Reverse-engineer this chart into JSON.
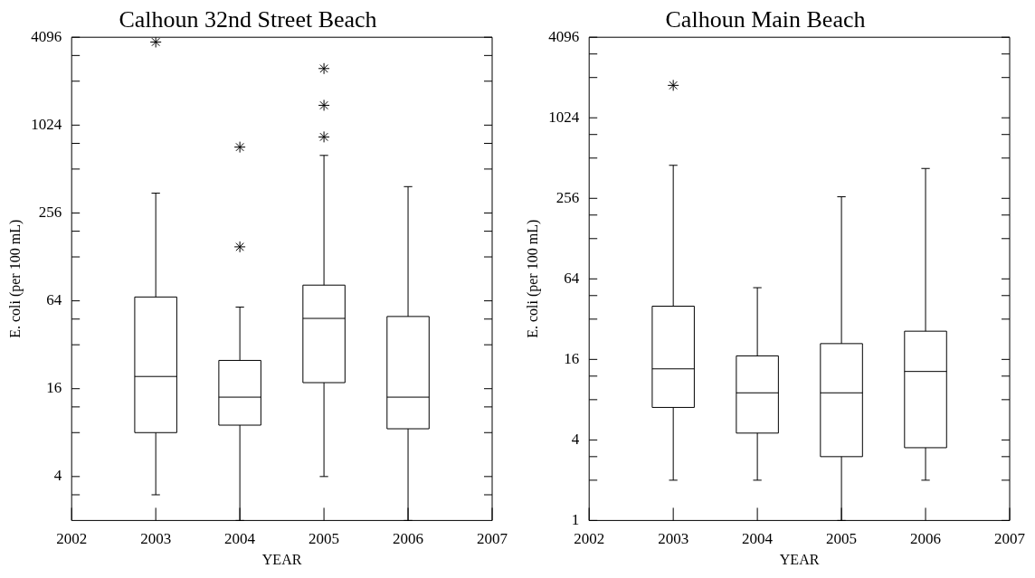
{
  "chart_data": [
    {
      "type": "box",
      "title": "Calhoun 32nd Street Beach",
      "xlabel": "YEAR",
      "ylabel": "E. coli (per 100 mL)",
      "x": [
        2003,
        2004,
        2005,
        2006
      ],
      "xlim": [
        2002,
        2007
      ],
      "xticks": [
        2002,
        2003,
        2004,
        2005,
        2006,
        2007
      ],
      "ylim": [
        2,
        4096
      ],
      "log": "y",
      "marker": "star",
      "yticks": [
        {
          "value": 3,
          "label": null
        },
        4,
        {
          "value": 8,
          "label": null
        },
        {
          "value": 12,
          "label": null
        },
        16,
        {
          "value": 32,
          "label": null
        },
        {
          "value": 48,
          "label": null
        },
        64,
        {
          "value": 128,
          "label": null
        },
        {
          "value": 192,
          "label": null
        },
        256,
        {
          "value": 512,
          "label": null
        },
        {
          "value": 768,
          "label": null
        },
        1024,
        {
          "value": 2048,
          "label": null
        },
        {
          "value": 3072,
          "label": null
        },
        4096
      ],
      "boxes": [
        {
          "low": 3,
          "q1": 8,
          "median": 19.4,
          "q3": 68,
          "high": 350,
          "outliers": [
            3800
          ]
        },
        {
          "low": 2,
          "q1": 9,
          "median": 14,
          "q3": 25,
          "high": 58,
          "outliers": [
            724,
            150
          ]
        },
        {
          "low": 4,
          "q1": 17.6,
          "median": 48.5,
          "q3": 82,
          "high": 635,
          "outliers": [
            2500,
            1400,
            850
          ]
        },
        {
          "low": 2,
          "q1": 8.5,
          "median": 14,
          "q3": 50,
          "high": 388
        }
      ]
    },
    {
      "type": "box",
      "title": "Calhoun Main Beach",
      "xlabel": "YEAR",
      "ylabel": "E. coli (per 100 mL)",
      "x": [
        2003,
        2004,
        2005,
        2006
      ],
      "xlim": [
        2002,
        2007
      ],
      "xticks": [
        2002,
        2003,
        2004,
        2005,
        2006,
        2007
      ],
      "ylim": [
        1,
        4096
      ],
      "log": "y",
      "marker": "star",
      "yticks": [
        1,
        {
          "value": 2,
          "label": null
        },
        {
          "value": 3,
          "label": null
        },
        4,
        {
          "value": 8,
          "label": null
        },
        {
          "value": 12,
          "label": null
        },
        16,
        {
          "value": 32,
          "label": null
        },
        {
          "value": 48,
          "label": null
        },
        64,
        {
          "value": 128,
          "label": null
        },
        {
          "value": 192,
          "label": null
        },
        256,
        {
          "value": 512,
          "label": null
        },
        {
          "value": 768,
          "label": null
        },
        1024,
        {
          "value": 2048,
          "label": null
        },
        {
          "value": 3072,
          "label": null
        },
        4096
      ],
      "boxes": [
        {
          "low": 2,
          "q1": 7,
          "median": 13.6,
          "q3": 40,
          "high": 452,
          "outliers": [
            1790
          ]
        },
        {
          "low": 2,
          "q1": 4.5,
          "median": 9,
          "q3": 17,
          "high": 55
        },
        {
          "low": 1,
          "q1": 3,
          "median": 9,
          "q3": 21,
          "high": 263
        },
        {
          "low": 2,
          "q1": 3.5,
          "median": 13,
          "q3": 26,
          "high": 428
        }
      ]
    }
  ]
}
